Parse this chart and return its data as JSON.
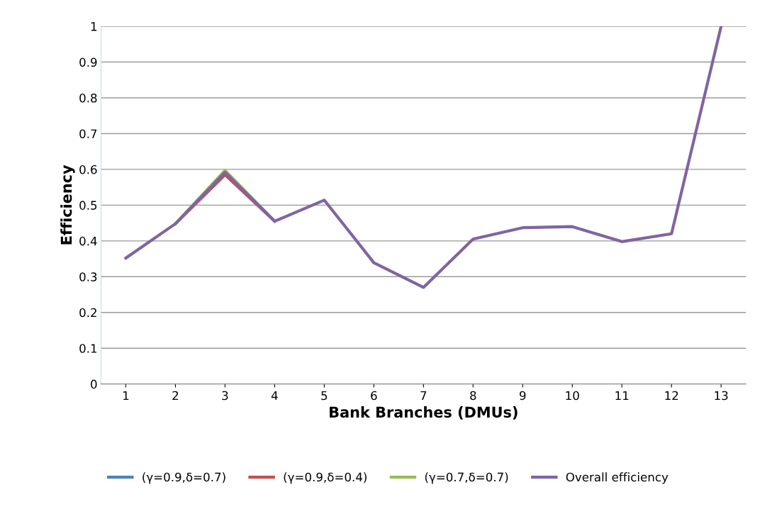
{
  "chart_data": {
    "type": "line",
    "xlabel": "Bank Branches (DMUs)",
    "ylabel": "Efficiency",
    "categories": [
      "1",
      "2",
      "3",
      "4",
      "5",
      "6",
      "7",
      "8",
      "9",
      "10",
      "11",
      "12",
      "13"
    ],
    "series": [
      {
        "name": "(γ=0.9,δ=0.7)",
        "color": "#4f81bd",
        "values": [
          null,
          null,
          null,
          null,
          null,
          null,
          null,
          null,
          null,
          null,
          null,
          null,
          null
        ]
      },
      {
        "name": "(γ=0.9,δ=0.4)",
        "color": "#c0504d",
        "values": [
          null,
          0.448,
          0.585,
          0.455,
          null,
          null,
          null,
          null,
          null,
          null,
          null,
          null,
          null
        ]
      },
      {
        "name": "(γ=0.7,δ=0.7)",
        "color": "#9bbb59",
        "values": [
          null,
          0.448,
          0.597,
          0.455,
          null,
          null,
          null,
          null,
          null,
          null,
          null,
          null,
          null
        ]
      },
      {
        "name": "Overall efficiency",
        "color": "#8064a2",
        "values": [
          0.352,
          0.448,
          0.592,
          0.455,
          0.514,
          0.339,
          0.27,
          0.405,
          0.437,
          0.44,
          0.398,
          0.42,
          1
        ]
      }
    ],
    "ylim": [
      0,
      1
    ],
    "yticks": [
      0,
      0.1,
      0.2,
      0.3,
      0.4,
      0.5,
      0.6,
      0.7,
      0.8,
      0.9,
      1
    ],
    "grid": "y",
    "legend": "bottom",
    "marker": "none",
    "line_style": "solid"
  }
}
